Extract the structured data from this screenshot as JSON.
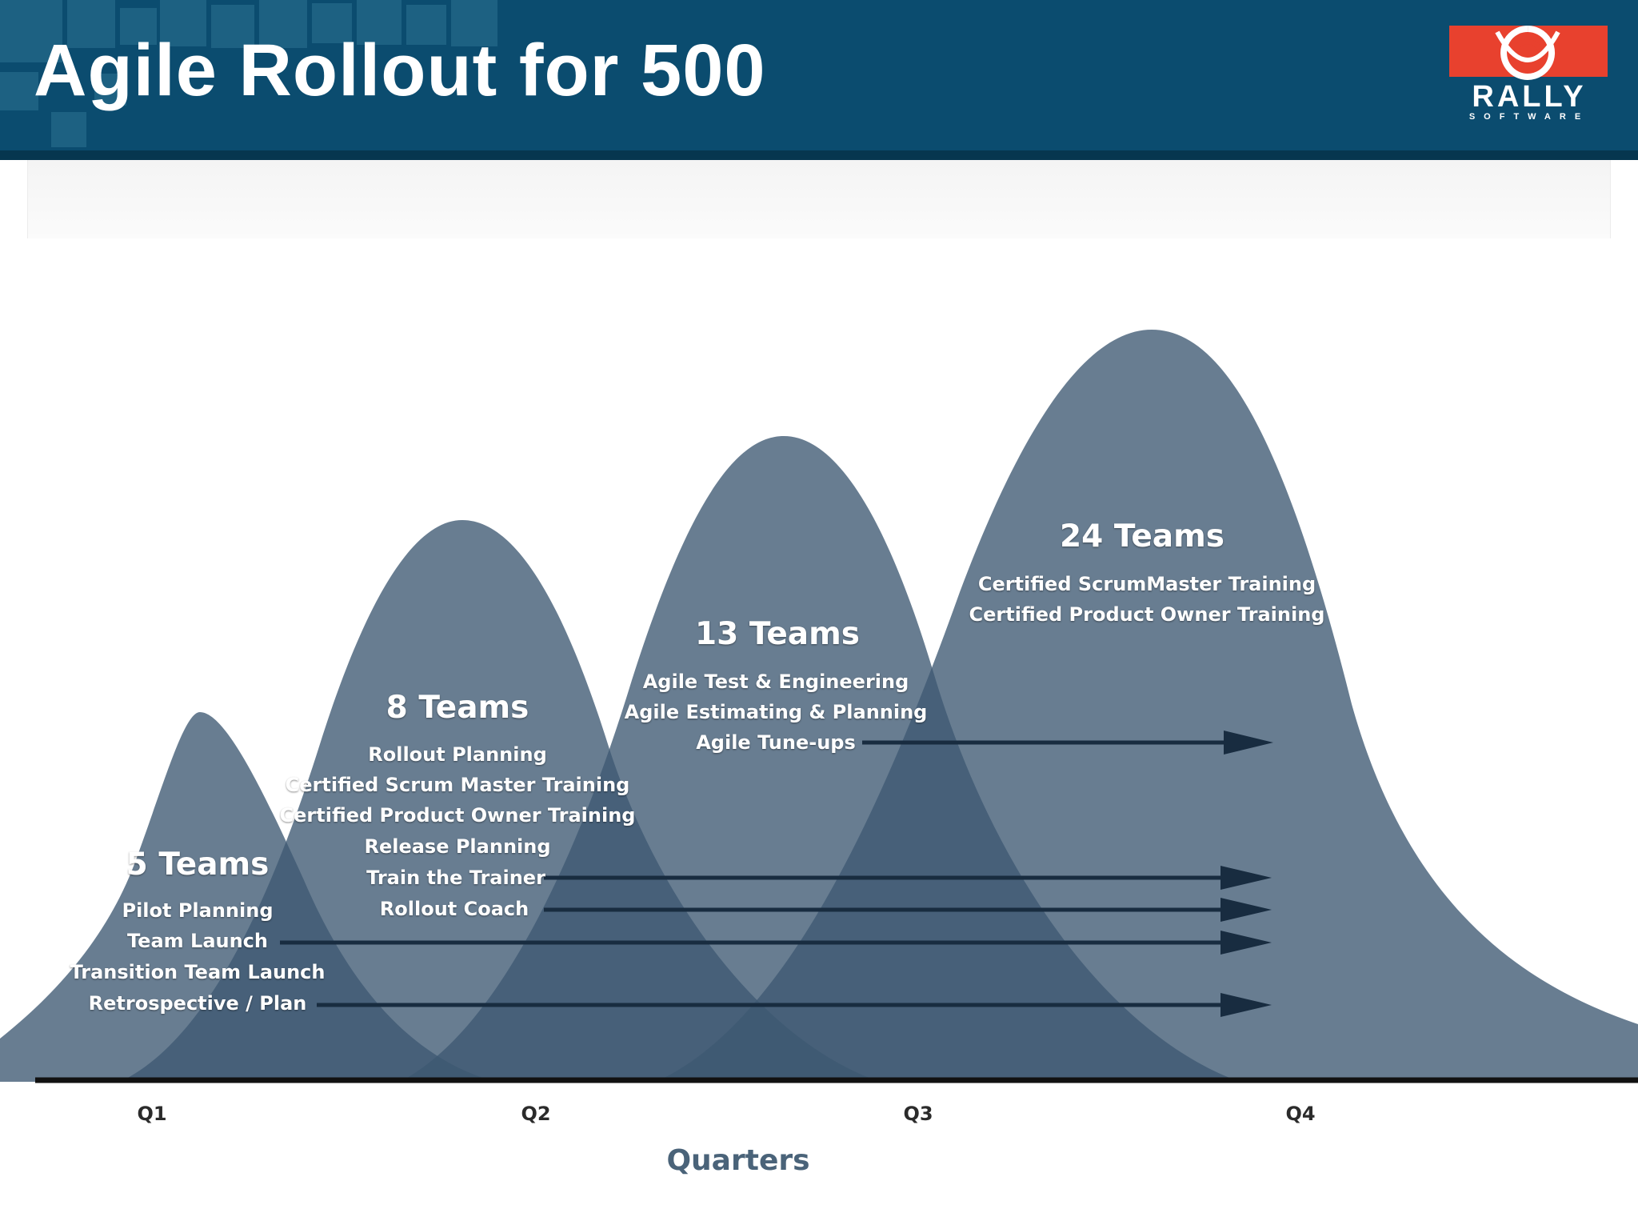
{
  "header": {
    "title": "Agile Rollout for 500",
    "logo": {
      "word": "RALLY",
      "subword": "SOFTWARE",
      "icon": "rally-logo-icon"
    }
  },
  "colors": {
    "header_bg": "#0b4c6f",
    "curve_fill": "#3d5872",
    "arrow": "#182c40",
    "baseline": "#111111",
    "logo_red": "#e8412e"
  },
  "diagram": {
    "stages": [
      {
        "heading": "5 Teams",
        "items": [
          "Pilot Planning",
          "Team Launch",
          "Transition Team Launch",
          "Retrospective / Plan"
        ]
      },
      {
        "heading": "8 Teams",
        "items": [
          "Rollout Planning",
          "Certified Scrum Master Training",
          "Certified Product Owner Training",
          "Release Planning",
          "Train the Trainer",
          "Rollout Coach"
        ]
      },
      {
        "heading": "13 Teams",
        "items": [
          "Agile Test & Engineering",
          "Agile Estimating & Planning",
          "Agile Tune-ups"
        ]
      },
      {
        "heading": "24 Teams",
        "items": [
          "Certified ScrumMaster Training",
          "Certified Product Owner Training"
        ]
      }
    ],
    "axis": {
      "ticks": [
        "Q1",
        "Q2",
        "Q3",
        "Q4"
      ],
      "title": "Quarters"
    }
  }
}
